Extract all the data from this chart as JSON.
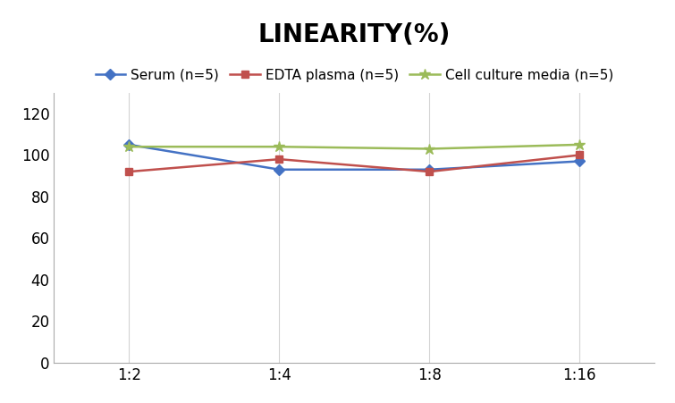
{
  "title": "LINEARITY(%)",
  "x_labels": [
    "1:2",
    "1:4",
    "1:8",
    "1:16"
  ],
  "x_positions": [
    0,
    1,
    2,
    3
  ],
  "series": [
    {
      "label": "Serum (n=5)",
      "values": [
        105,
        93,
        93,
        97
      ],
      "color": "#4472C4",
      "marker": "D",
      "marker_size": 6,
      "linewidth": 1.8
    },
    {
      "label": "EDTA plasma (n=5)",
      "values": [
        92,
        98,
        92,
        100
      ],
      "color": "#C0504D",
      "marker": "s",
      "marker_size": 6,
      "linewidth": 1.8
    },
    {
      "label": "Cell culture media (n=5)",
      "values": [
        104,
        104,
        103,
        105
      ],
      "color": "#9BBB59",
      "marker": "*",
      "marker_size": 9,
      "linewidth": 1.8
    }
  ],
  "ylim": [
    0,
    130
  ],
  "yticks": [
    0,
    20,
    40,
    60,
    80,
    100,
    120
  ],
  "title_fontsize": 20,
  "legend_fontsize": 11,
  "tick_fontsize": 12,
  "background_color": "#FFFFFF",
  "grid_color": "#D3D3D3"
}
